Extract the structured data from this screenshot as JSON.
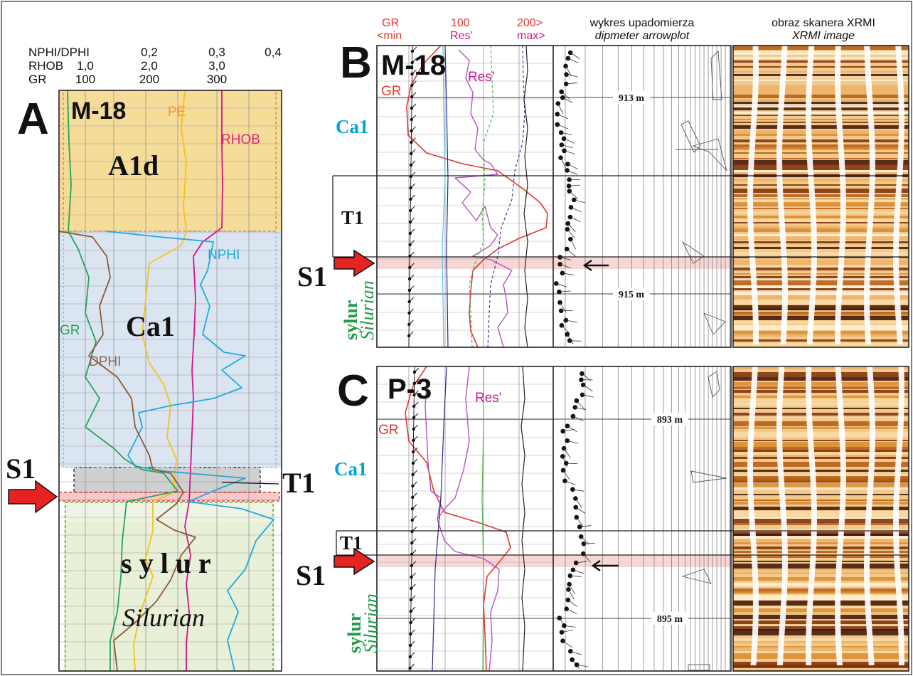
{
  "panel_a": {
    "letter": "A",
    "well": "M-18",
    "scale_rows": [
      {
        "label": "NPHI/DPHI",
        "ticks": [
          "0,2",
          "0,3",
          "0,4"
        ]
      },
      {
        "label": "RHOB",
        "ticks": [
          "1,0",
          "2,0",
          "3,0"
        ]
      },
      {
        "label": "GR",
        "ticks": [
          "100",
          "200",
          "300"
        ]
      }
    ],
    "curve_labels": {
      "pe": "PE",
      "rhob": "RHOB",
      "nphi": "NPHI",
      "gr": "GR",
      "dphi": "DPHI"
    },
    "zones": {
      "a1d": "A1d",
      "ca1": "Ca1",
      "sylur": "s y l u r",
      "silurian": "Silurian"
    },
    "s1": "S1",
    "t1": "T1",
    "colors": {
      "a1d": "#f6dc99",
      "ca1": "#dbe5f1",
      "sylur": "#e8f0d8",
      "t1": "#cfcfcf"
    }
  },
  "panel_b": {
    "letter": "B",
    "well": "M-18",
    "header": {
      "gr": "GR",
      "gr_min": "<min",
      "res_value": "100",
      "res": "Res'",
      "max_value": "200>",
      "max": "max>",
      "dipmeter_pl": "wykres upadomierza",
      "dipmeter_en": "dipmeter arrowplot",
      "xrmi_pl": "obraz skanera XRMI",
      "xrmi_en": "XRMI image"
    },
    "curve_labels": {
      "gr": "GR",
      "res": "Res'"
    },
    "zones": {
      "ca1": "Ca1",
      "t1": "T1",
      "sylur": "sylur",
      "silurian": "Silurian"
    },
    "s1": "S1",
    "depths": [
      "913 m",
      "915 m"
    ]
  },
  "panel_c": {
    "letter": "C",
    "well": "P-3",
    "curve_labels": {
      "gr": "GR",
      "res": "Res'"
    },
    "zones": {
      "ca1": "Ca1",
      "t1": "T1",
      "sylur": "sylur",
      "silurian": "Silurian"
    },
    "s1": "S1",
    "depths": [
      "893 m",
      "895 m"
    ]
  },
  "colors": {
    "gr_red": "#e03a2f",
    "res_magenta": "#d0198f",
    "zone_cyan": "#00a3d9",
    "zone_green": "#1f9a47",
    "pe_orange": "#f29a38",
    "nphi_cyan": "#27aee0",
    "dphi_brown": "#8a6a5a",
    "arrow_red": "#e52323",
    "xrmi_dark": "#3a1305",
    "xrmi_light": "#fff1d6"
  }
}
